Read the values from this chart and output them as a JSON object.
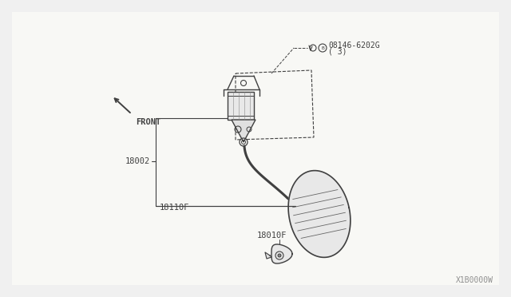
{
  "bg_color": "#f0f0f0",
  "line_color": "#404040",
  "text_color": "#404040",
  "watermark": "X1B0000W",
  "part_label_bolt": "08146-6202G",
  "part_label_bolt2": "( 3)",
  "part_label_2": "18002",
  "part_label_3": "18110F",
  "part_label_4": "18010F",
  "front_label": "FRONT",
  "figsize": [
    6.4,
    3.72
  ],
  "dpi": 100
}
